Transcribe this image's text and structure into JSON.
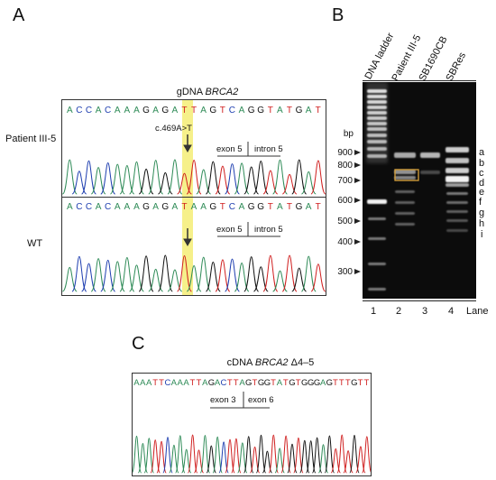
{
  "panelA": {
    "letter": "A",
    "title_prefix": "gDNA ",
    "title_gene": "BRCA2",
    "patient_label": "Patient III-5",
    "wt_label": "WT",
    "patient_seq": "ACCACAAAGAGATTAGTCAGGTATGAT",
    "wt_seq": "ACCACAAAGAGATAAGTCAGGTATGAT",
    "mutation_label": "c.469A>T",
    "exon_label": "exon 5",
    "intron_label": "intron 5",
    "highlight_color": "#f6f08a"
  },
  "panelB": {
    "letter": "B",
    "lanes": [
      "DNA ladder",
      "Patient III-5",
      "SB1690CB",
      "SBRes"
    ],
    "lane_numbers": [
      "1",
      "2",
      "3",
      "4"
    ],
    "lane_word": "Lane",
    "bp_title": "bp",
    "bp_labels": [
      "900",
      "800",
      "700",
      "600",
      "500",
      "400",
      "300"
    ],
    "band_labels": [
      "a",
      "b",
      "c",
      "d",
      "e",
      "f",
      "g",
      "h",
      "i"
    ],
    "box_color": "#d9a23a"
  },
  "panelC": {
    "letter": "C",
    "title_prefix": "cDNA ",
    "title_gene": "BRCA2",
    "title_suffix": " Δ4–5",
    "seq": "AAATTCAAATTAGACTTAGTGGTATGTGGGAGTTTGTT",
    "exon3_label": "exon 3",
    "exon6_label": "exon 6"
  }
}
